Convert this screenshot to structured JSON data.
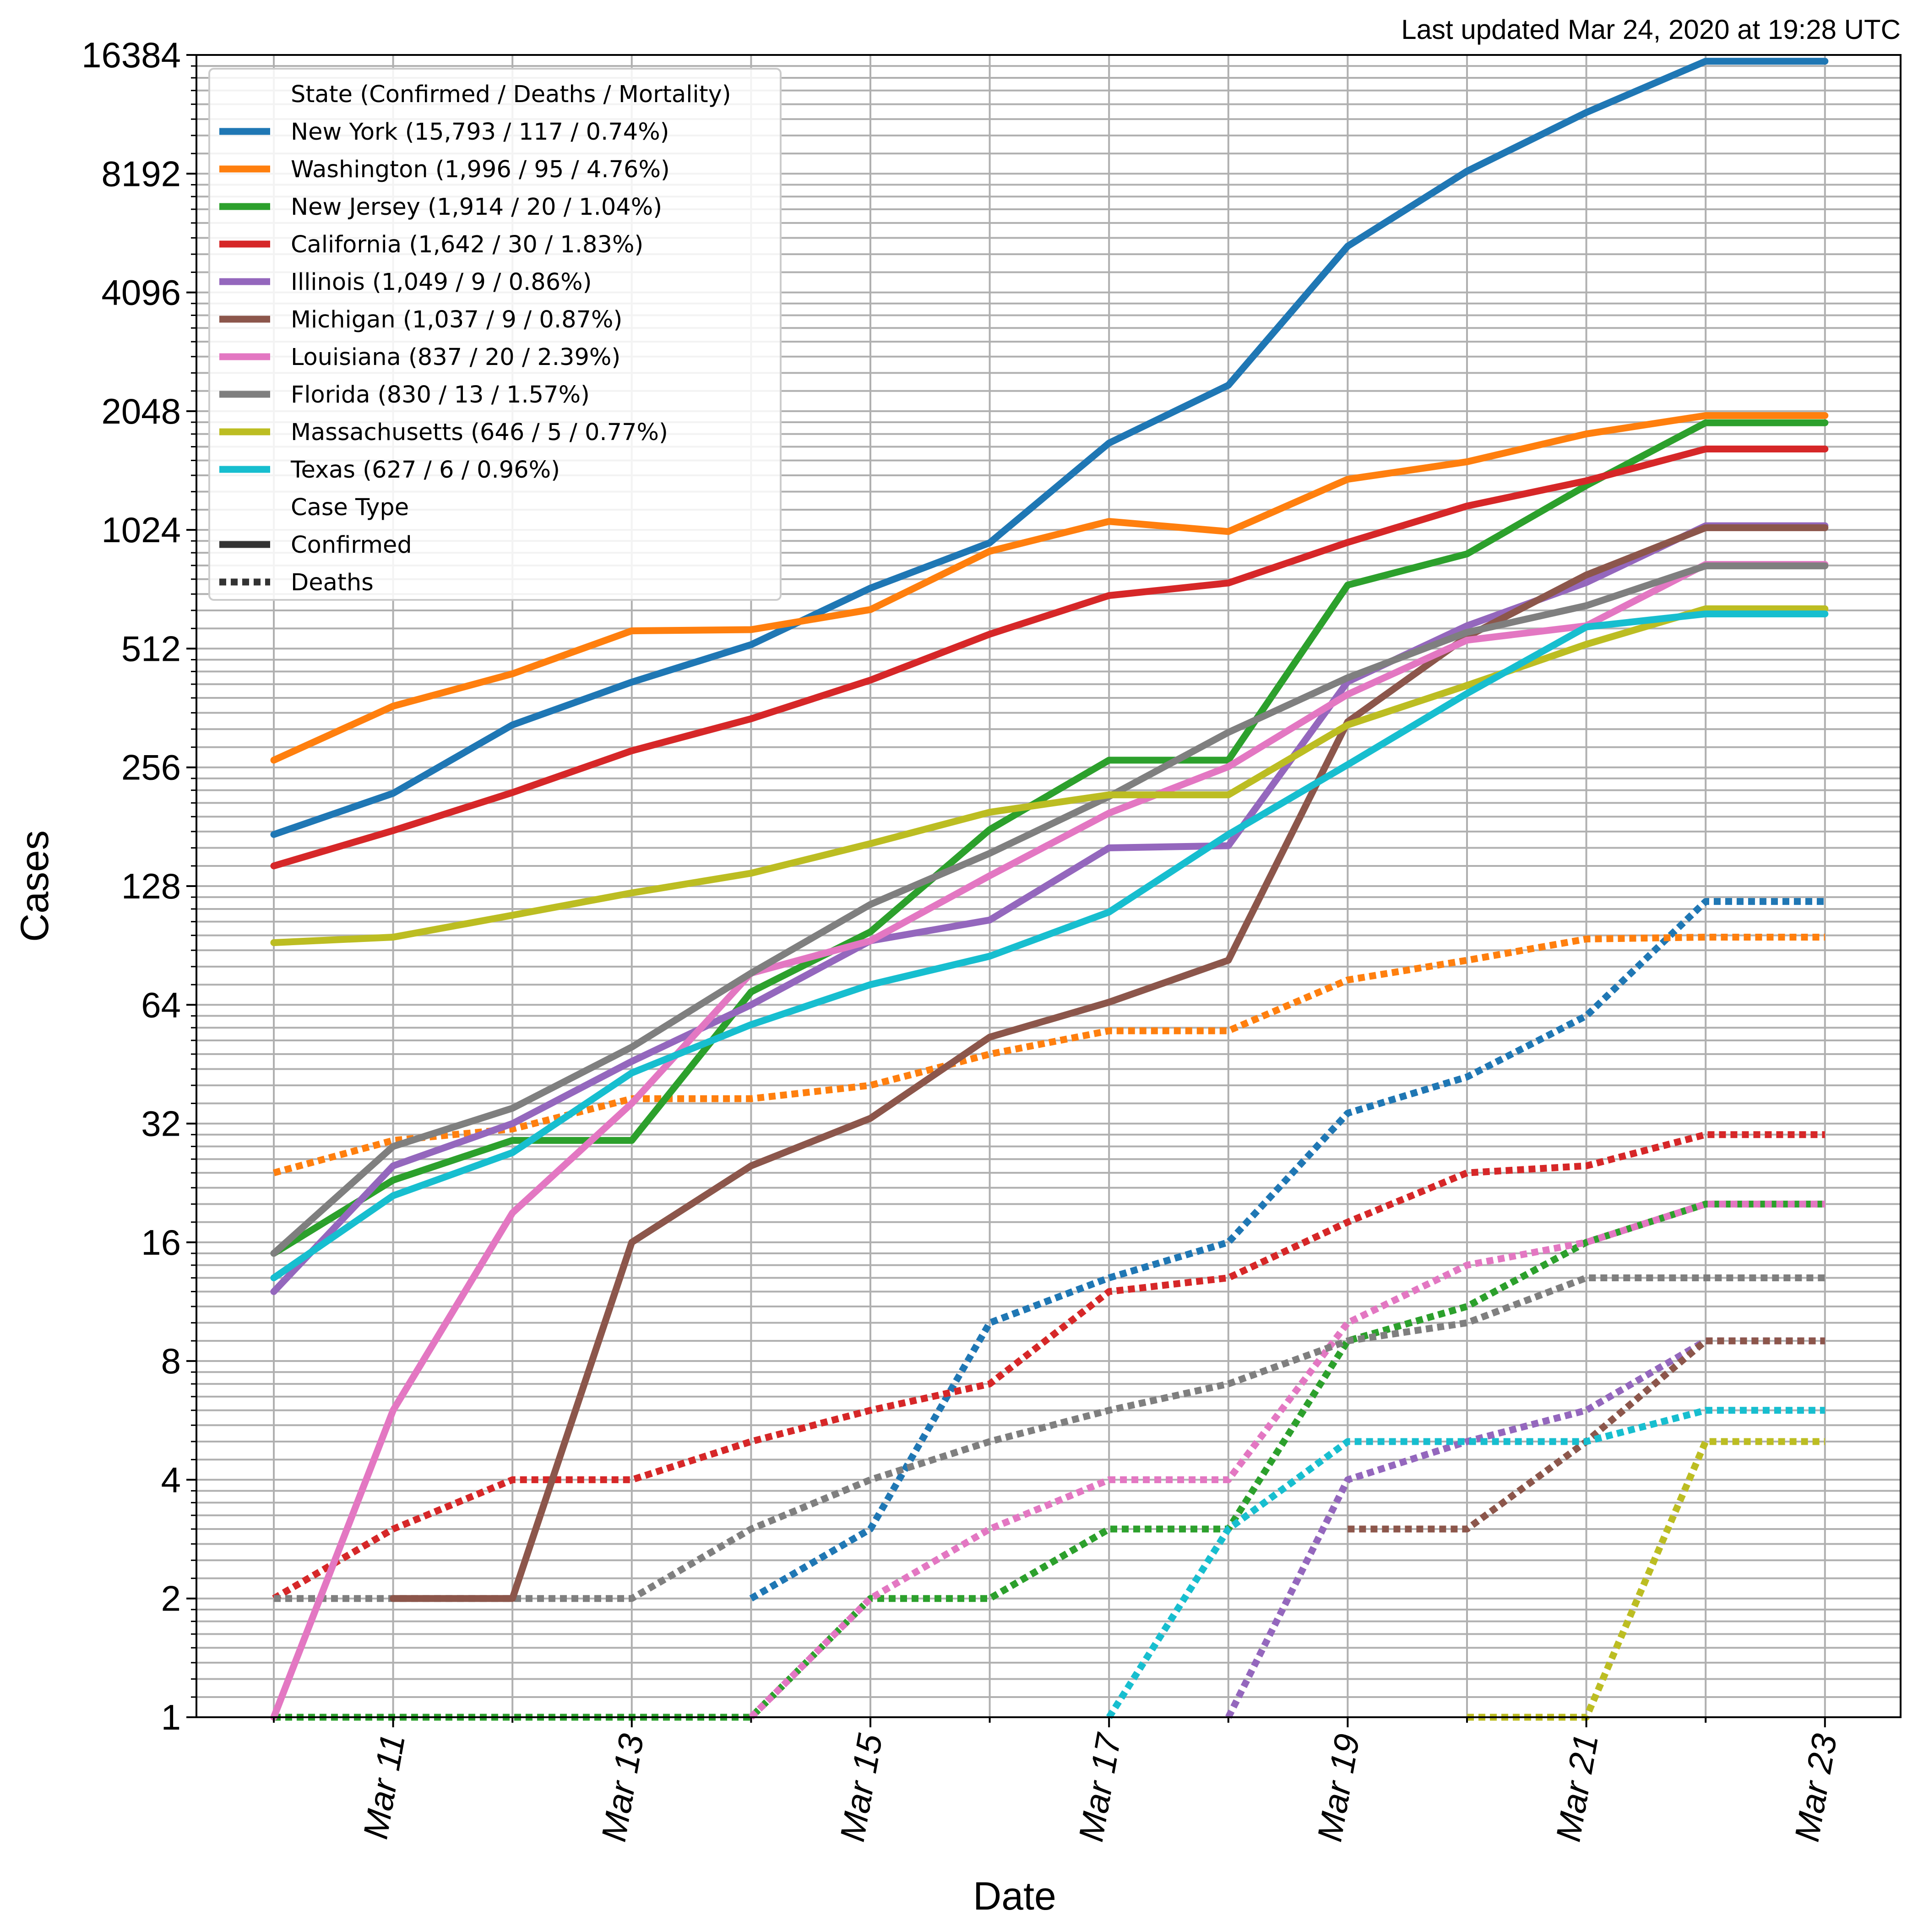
{
  "chart_data": {
    "type": "line",
    "annotation": "Last updated Mar 24, 2020 at 19:28 UTC",
    "xlabel": "Date",
    "ylabel": "Cases",
    "yscale": "log2",
    "ylim": [
      1,
      16384
    ],
    "y_ticks": [
      1,
      2,
      4,
      8,
      16,
      32,
      64,
      128,
      256,
      512,
      1024,
      2048,
      4096,
      8192,
      16384
    ],
    "y_tick_labels": [
      "1",
      "2",
      "4",
      "8",
      "16",
      "32",
      "64",
      "128",
      "256",
      "512",
      "1024",
      "2048",
      "4096",
      "8192",
      "16384"
    ],
    "x": [
      "Mar 10",
      "Mar 11",
      "Mar 12",
      "Mar 13",
      "Mar 14",
      "Mar 15",
      "Mar 16",
      "Mar 17",
      "Mar 18",
      "Mar 19",
      "Mar 20",
      "Mar 21",
      "Mar 22",
      "Mar 23"
    ],
    "x_tick_labels": [
      "Mar 11",
      "Mar 13",
      "Mar 15",
      "Mar 17",
      "Mar 19",
      "Mar 21",
      "Mar 23"
    ],
    "grid": true,
    "legend": {
      "placement": "top-left",
      "title": "State (Confirmed / Deaths / Mortality)",
      "case_type_title": "Case Type",
      "case_types": [
        {
          "label": "Confirmed",
          "style": "solid",
          "color": "#333333"
        },
        {
          "label": "Deaths",
          "style": "dotted",
          "color": "#333333"
        }
      ]
    },
    "series": [
      {
        "name": "New York (15,793 / 117 / 0.74%)",
        "color": "#1f77b4",
        "confirmed": [
          173,
          220,
          328,
          421,
          524,
          729,
          950,
          1700,
          2382,
          5365,
          8310,
          11710,
          15793,
          15793
        ],
        "deaths": [
          null,
          null,
          null,
          null,
          2,
          3,
          10,
          13,
          16,
          34,
          42,
          60,
          117,
          117
        ]
      },
      {
        "name": "Washington (1,996 / 95 / 4.76%)",
        "color": "#ff7f0e",
        "confirmed": [
          267,
          366,
          442,
          568,
          572,
          643,
          904,
          1076,
          1014,
          1376,
          1524,
          1793,
          1996,
          1996
        ],
        "deaths": [
          24,
          29,
          31,
          37,
          37,
          40,
          48,
          55,
          55,
          74,
          83,
          94,
          95,
          95
        ]
      },
      {
        "name": "New Jersey (1,914 / 20 / 1.04%)",
        "color": "#2ca02c",
        "confirmed": [
          15,
          23,
          29,
          29,
          69,
          98,
          178,
          267,
          267,
          742,
          890,
          1327,
          1914,
          1914
        ],
        "deaths": [
          1,
          1,
          1,
          1,
          1,
          2,
          2,
          3,
          3,
          9,
          11,
          16,
          20,
          20
        ]
      },
      {
        "name": "California (1,642 / 30 / 1.83%)",
        "color": "#d62728",
        "confirmed": [
          144,
          177,
          221,
          282,
          340,
          426,
          557,
          698,
          751,
          952,
          1177,
          1364,
          1642,
          1642
        ],
        "deaths": [
          2,
          3,
          4,
          4,
          5,
          6,
          7,
          12,
          13,
          18,
          24,
          25,
          30,
          30
        ]
      },
      {
        "name": "Illinois (1,049 / 9 / 0.86%)",
        "color": "#9467bd",
        "confirmed": [
          12,
          25,
          32,
          46,
          64,
          93,
          105,
          160,
          162,
          422,
          585,
          753,
          1049,
          1049
        ],
        "deaths": [
          null,
          null,
          null,
          null,
          null,
          null,
          null,
          null,
          1,
          4,
          5,
          6,
          9,
          9
        ]
      },
      {
        "name": "Michigan (1,037 / 9 / 0.87%)",
        "color": "#8c564b",
        "confirmed": [
          null,
          2,
          2,
          16,
          25,
          33,
          53,
          65,
          83,
          334,
          549,
          787,
          1037,
          1037
        ],
        "deaths": [
          null,
          null,
          null,
          null,
          null,
          null,
          null,
          null,
          null,
          3,
          3,
          5,
          9,
          9
        ]
      },
      {
        "name": "Louisiana (837 / 20 / 2.39%)",
        "color": "#e377c2",
        "confirmed": [
          1,
          6,
          19,
          36,
          77,
          93,
          136,
          196,
          257,
          392,
          538,
          585,
          837,
          837
        ],
        "deaths": [
          null,
          null,
          null,
          null,
          1,
          2,
          3,
          4,
          4,
          10,
          14,
          16,
          20,
          20
        ]
      },
      {
        "name": "Florida (830 / 13 / 1.57%)",
        "color": "#7f7f7f",
        "confirmed": [
          15,
          28,
          35,
          50,
          77,
          115,
          155,
          216,
          314,
          432,
          563,
          658,
          830,
          830
        ],
        "deaths": [
          2,
          2,
          2,
          2,
          3,
          4,
          5,
          6,
          7,
          9,
          10,
          13,
          13,
          13
        ]
      },
      {
        "name": "Massachusetts (646 / 5 / 0.77%)",
        "color": "#bcbd22",
        "confirmed": [
          92,
          95,
          108,
          123,
          138,
          164,
          197,
          218,
          218,
          328,
          413,
          525,
          646,
          646
        ],
        "deaths": [
          null,
          null,
          null,
          null,
          null,
          null,
          null,
          null,
          null,
          null,
          1,
          1,
          5,
          5
        ]
      },
      {
        "name": "Texas (627 / 6 / 0.96%)",
        "color": "#17becf",
        "confirmed": [
          13,
          21,
          27,
          43,
          57,
          72,
          85,
          110,
          173,
          260,
          394,
          581,
          627,
          627
        ],
        "deaths": [
          null,
          null,
          null,
          null,
          null,
          null,
          null,
          1,
          3,
          5,
          5,
          5,
          6,
          6
        ]
      }
    ]
  }
}
